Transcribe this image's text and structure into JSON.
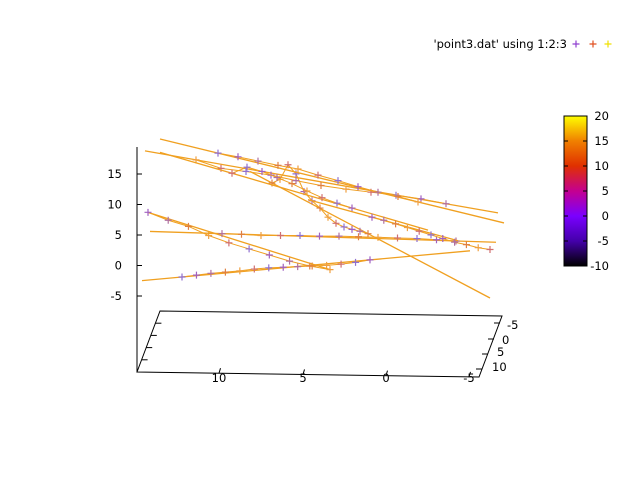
{
  "chart_data": {
    "type": "scatter",
    "title": "",
    "legend": {
      "placement": "top-right",
      "entry": "'point3.dat' using 1:2:3"
    },
    "colorbox": {
      "range": [
        -10,
        20
      ],
      "ticks": [
        "20",
        "15",
        "10",
        "5",
        "0",
        "-5",
        "-10"
      ],
      "palette": [
        "#000000",
        "#4400aa",
        "#7a00ff",
        "#c40090",
        "#e03000",
        "#f08000",
        "#ffff00"
      ]
    },
    "z_axis": {
      "range": [
        -5,
        20
      ],
      "ticks": [
        "-5",
        "0",
        "5",
        "10",
        "15"
      ]
    },
    "x_axis": {
      "ticks": [
        "10",
        "5",
        "0",
        "-5"
      ]
    },
    "y_axis": {
      "ticks": [
        "-5",
        "0",
        "5",
        "10"
      ]
    },
    "line_color": "#f0a020",
    "series": [
      {
        "z": [
          -1.8,
          -1.5,
          -1.2,
          -1.0,
          -0.8,
          -0.5,
          -0.3,
          -0.2,
          -0.1,
          0.0,
          0.1,
          0.3,
          0.6,
          1.0
        ]
      },
      {
        "z": [
          8.8,
          7.5,
          6.5,
          5.0,
          3.8,
          2.8,
          1.8,
          0.8,
          0.0,
          -0.6
        ]
      },
      {
        "z": [
          5.3,
          5.2,
          5.0,
          5.0,
          5.0,
          4.9,
          4.9,
          4.8,
          4.7,
          4.6,
          4.5,
          4.3,
          4.1
        ]
      },
      {
        "z": [
          13.6,
          14.2,
          16.6,
          15.1,
          12.2,
          10.7,
          9.5,
          8.0,
          7.0,
          6.4,
          6.0,
          5.7,
          5.3
        ]
      },
      {
        "z": [
          17.4,
          16.0,
          15.5,
          14.9,
          14.0,
          13.2,
          12.6,
          12.1,
          11.6,
          11.0,
          10.2
        ]
      },
      {
        "z": [
          15.2,
          16.2,
          15.5,
          14.5,
          13.5,
          12.3,
          11.2,
          10.3,
          9.5
        ]
      },
      {
        "z": [
          18.5,
          17.9,
          17.2,
          16.5,
          15.9,
          14.9,
          14.0,
          13.0,
          12.1,
          11.4,
          10.5
        ]
      },
      {
        "z": [
          8.0,
          7.5,
          6.9,
          6.3,
          5.7,
          5.1,
          4.5,
          3.9,
          3.5,
          3.0,
          2.7
        ]
      }
    ]
  }
}
